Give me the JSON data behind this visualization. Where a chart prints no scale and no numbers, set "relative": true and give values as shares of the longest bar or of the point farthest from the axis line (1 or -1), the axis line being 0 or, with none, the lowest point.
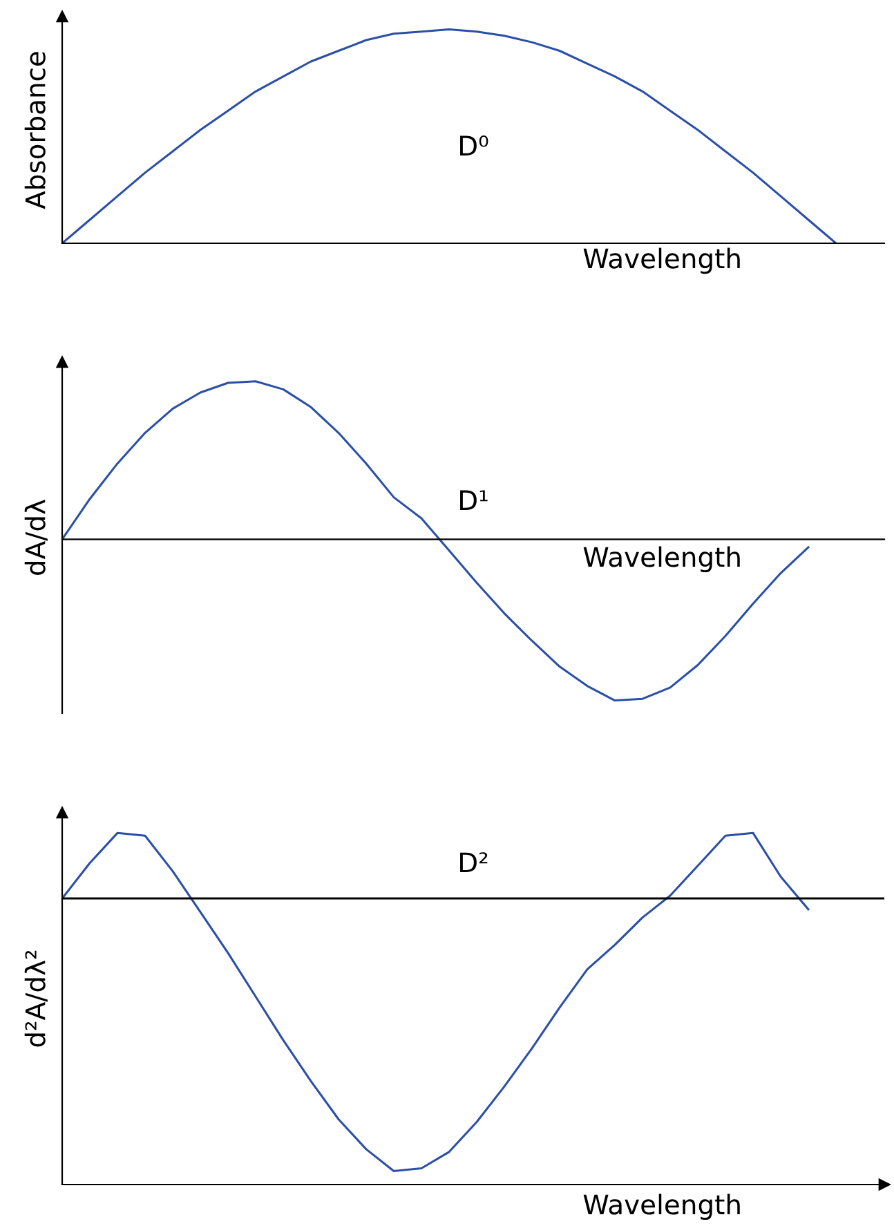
{
  "chart_data": [
    {
      "type": "line",
      "relative": true,
      "ylabel": "Absorbance",
      "xlabel": "Wavelength",
      "annotations": [
        "D⁰"
      ],
      "categories": [
        null,
        null,
        null,
        null,
        null,
        null,
        null,
        null,
        null,
        null,
        null,
        null,
        null,
        null,
        null,
        null,
        null,
        null,
        null,
        null,
        null,
        null,
        null,
        null,
        null,
        null,
        null,
        null,
        null
      ],
      "series": [
        {
          "color": "#2b4fa8",
          "values": [
            0,
            0.11,
            0.22,
            0.33,
            0.43,
            0.53,
            0.62,
            0.71,
            0.78,
            0.85,
            0.9,
            0.95,
            0.98,
            0.99,
            1.0,
            0.99,
            0.97,
            0.94,
            0.9,
            0.84,
            0.78,
            0.71,
            0.62,
            0.53,
            0.43,
            0.33,
            0.22,
            0.11,
            0
          ]
        }
      ],
      "legend": false
    },
    {
      "type": "line",
      "relative": true,
      "ylabel": "dA/dλ",
      "xlabel": "Wavelength",
      "annotations": [
        "D¹"
      ],
      "categories": [
        null,
        null,
        null,
        null,
        null,
        null,
        null,
        null,
        null,
        null,
        null,
        null,
        null,
        null,
        null,
        null,
        null,
        null,
        null,
        null,
        null,
        null,
        null,
        null,
        null,
        null,
        null,
        null,
        null
      ],
      "series": [
        {
          "color": "#2b4fa8",
          "values": [
            0,
            0.25,
            0.47,
            0.66,
            0.81,
            0.91,
            0.97,
            0.98,
            0.93,
            0.82,
            0.66,
            0.47,
            0.26,
            0.13,
            -0.07,
            -0.27,
            -0.46,
            -0.63,
            -0.79,
            -0.91,
            -1.0,
            -0.99,
            -0.92,
            -0.78,
            -0.6,
            -0.4,
            -0.21,
            -0.05,
            null
          ]
        }
      ],
      "legend": false
    },
    {
      "type": "line",
      "relative": true,
      "ylabel": "d²A/dλ²",
      "xlabel": "Wavelength",
      "annotations": [
        "D²"
      ],
      "categories": [
        null,
        null,
        null,
        null,
        null,
        null,
        null,
        null,
        null,
        null,
        null,
        null,
        null,
        null,
        null,
        null,
        null,
        null,
        null,
        null,
        null,
        null,
        null,
        null,
        null,
        null,
        null,
        null,
        null
      ],
      "series": [
        {
          "color": "#2b4fa8",
          "values": [
            0,
            0.13,
            0.24,
            0.23,
            0.1,
            -0.05,
            -0.2,
            -0.36,
            -0.52,
            -0.67,
            -0.81,
            -0.92,
            -1.0,
            -0.99,
            -0.93,
            -0.82,
            -0.69,
            -0.55,
            -0.4,
            -0.26,
            -0.17,
            -0.07,
            0.01,
            0.12,
            0.23,
            0.24,
            0.08,
            -0.04,
            null
          ]
        }
      ],
      "legend": false
    }
  ]
}
